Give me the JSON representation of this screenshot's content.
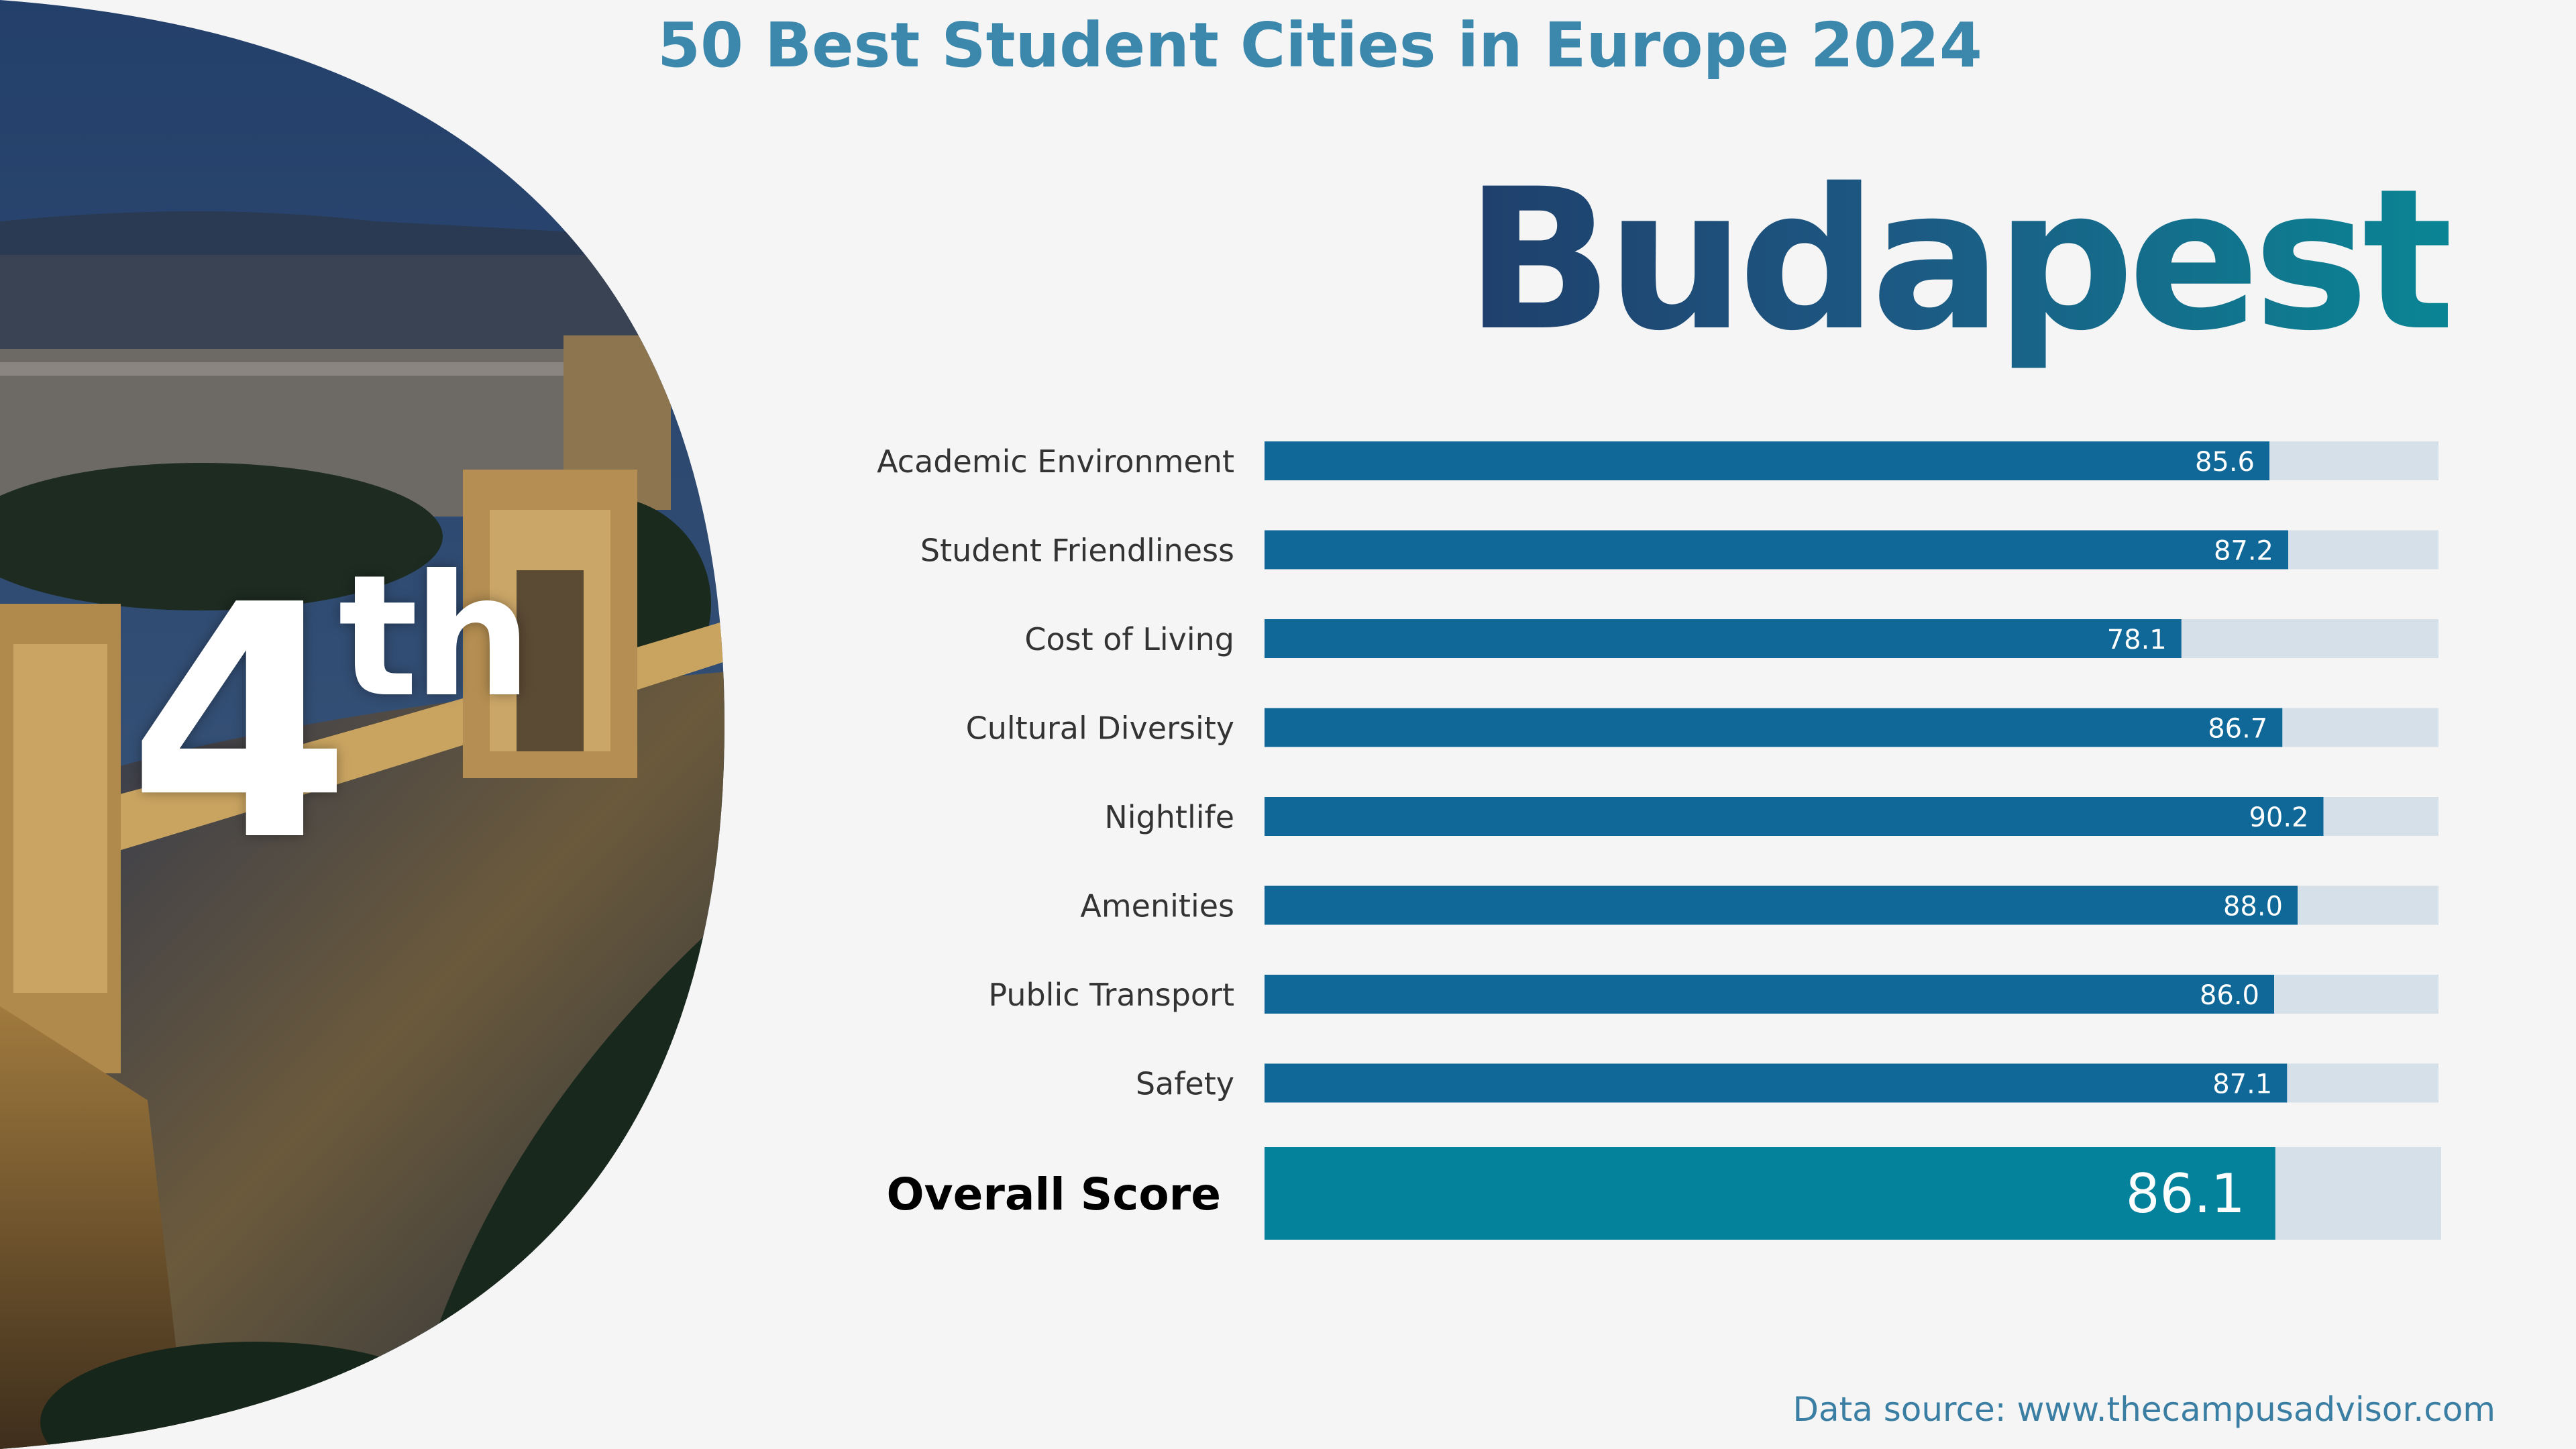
{
  "title": "50 Best Student Cities in Europe 2024",
  "city": "Budapest",
  "rank": {
    "number": "4",
    "suffix": "th"
  },
  "source": "Data source: www.thecampusadvisor.com",
  "colors": {
    "bar": "#0f6897",
    "overall_bar": "#05829b",
    "track": "#d5e0e8",
    "title": "#3c88ad",
    "label": "#333333"
  },
  "chart_data": {
    "type": "bar",
    "orientation": "horizontal",
    "xlim": [
      0,
      100
    ],
    "categories": [
      "Academic Environment",
      "Student Friendliness",
      "Cost of Living",
      "Cultural Diversity",
      "Nightlife",
      "Amenities",
      "Public Transport",
      "Safety"
    ],
    "values": [
      85.6,
      87.2,
      78.1,
      86.7,
      90.2,
      88.0,
      86.0,
      87.1
    ],
    "value_labels": [
      "85.6",
      "87.2",
      "78.1",
      "86.7",
      "90.2",
      "88.0",
      "86.0",
      "87.1"
    ],
    "overall": {
      "label": "Overall Score",
      "value": 86.1,
      "value_label": "86.1"
    }
  }
}
